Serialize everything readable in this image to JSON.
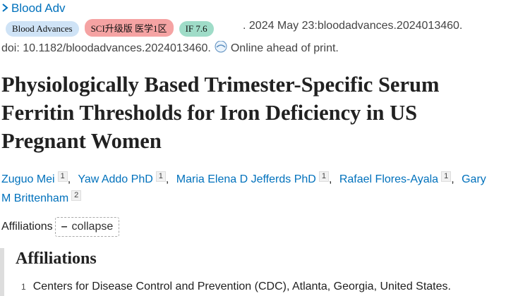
{
  "journal": {
    "name": "Blood Adv",
    "badges": [
      "Blood Advances",
      "SCI升级版 医学1区",
      "IF 7.6"
    ],
    "citation": ". 2024 May 23:bloodadvances.2024013460.",
    "doi": "doi: 10.1182/bloodadvances.2024013460.",
    "status": "Online ahead of print."
  },
  "title": "Physiologically Based Trimester-Specific Serum Ferritin Thresholds for Iron Deficiency in US Pregnant Women",
  "authors": [
    {
      "name": "Zuguo Mei",
      "affiliation": "1"
    },
    {
      "name": "Yaw Addo PhD",
      "affiliation": "1"
    },
    {
      "name": "Maria Elena D Jefferds PhD",
      "affiliation": "1"
    },
    {
      "name": "Rafael Flores-Ayala",
      "affiliation": "1"
    },
    {
      "name": "Gary M Brittenham",
      "affiliation": "2"
    }
  ],
  "affiliations_toggle": {
    "label": "Affiliations",
    "button": "collapse"
  },
  "affiliations": {
    "heading": "Affiliations",
    "items": [
      {
        "number": "1",
        "text": "Centers for Disease Control and Prevention (CDC), Atlanta, Georgia, United States."
      }
    ]
  }
}
